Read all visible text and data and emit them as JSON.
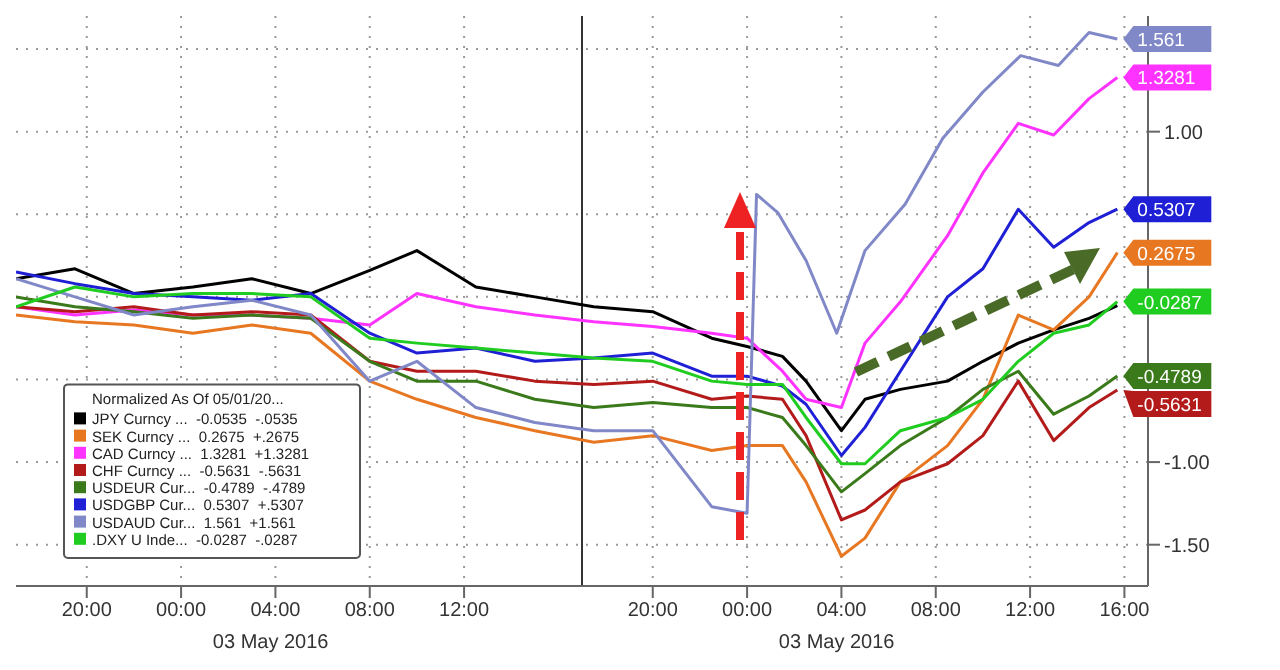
{
  "chart_data": {
    "type": "line",
    "legend_title": "Normalized As Of 05/01/20...",
    "x": [
      "2016-05-02T17:00",
      "2016-05-02T19:30",
      "2016-05-02T22:00",
      "2016-05-03T00:30",
      "2016-05-03T03:00",
      "2016-05-03T05:30",
      "2016-05-03T08:00",
      "2016-05-03T10:00",
      "2016-05-03T12:30",
      "2016-05-03T15:00",
      "2016-05-03T17:30",
      "2016-05-03T20:00",
      "2016-05-03T22:30",
      "2016-05-04T00:00",
      "2016-05-04T01:30",
      "2016-05-04T02:30",
      "2016-05-04T04:00",
      "2016-05-04T05:00",
      "2016-05-04T06:30",
      "2016-05-04T08:30",
      "2016-05-04T10:00",
      "2016-05-04T11:30",
      "2016-05-04T13:00",
      "2016-05-04T14:30",
      "2016-05-04T15:42"
    ],
    "xlim": [
      "2016-05-02T17:00",
      "2016-05-04T17:00"
    ],
    "xticks": [
      {
        "value": "2016-05-02T20:00",
        "label": "20:00"
      },
      {
        "value": "2016-05-03T00:00",
        "label": "00:00"
      },
      {
        "value": "2016-05-03T04:00",
        "label": "04:00"
      },
      {
        "value": "2016-05-03T08:00",
        "label": "08:00"
      },
      {
        "value": "2016-05-03T12:00",
        "label": "12:00"
      },
      {
        "value": "2016-05-03T20:00",
        "label": "20:00"
      },
      {
        "value": "2016-05-04T00:00",
        "label": "00:00"
      },
      {
        "value": "2016-05-04T04:00",
        "label": "04:00"
      },
      {
        "value": "2016-05-04T08:00",
        "label": "08:00"
      },
      {
        "value": "2016-05-04T12:00",
        "label": "12:00"
      },
      {
        "value": "2016-05-04T16:00",
        "label": "16:00"
      }
    ],
    "ylim": [
      -1.75,
      1.7
    ],
    "yticks": [
      {
        "value": 1.5,
        "label": null
      },
      {
        "value": 1,
        "label": "1.00"
      },
      {
        "value": 0.5,
        "label": null
      },
      {
        "value": 0,
        "label": null
      },
      {
        "value": -0.5,
        "label": null
      },
      {
        "value": -1,
        "label": "-1.00"
      },
      {
        "value": -1.5,
        "label": "-1.50"
      }
    ],
    "grid": true,
    "legend": "bottom left",
    "marker": "none",
    "line_style": "solid",
    "ref_lines": [
      {
        "axis": "x",
        "value": "2016-05-03T17:00",
        "color": "#333333",
        "line_style": "solid"
      }
    ],
    "annotations": [
      "03 May 2016",
      "03 May 2016"
    ],
    "series": [
      {
        "name": "JPY Curncy ...  -0.0535  -.0535",
        "color": "#000000",
        "values": [
          0.11,
          0.17,
          0.02,
          0.06,
          0.11,
          0.02,
          0.16,
          0.28,
          0.06,
          0,
          -0.06,
          -0.09,
          -0.25,
          -0.3,
          -0.36,
          -0.51,
          -0.81,
          -0.62,
          -0.56,
          -0.51,
          -0.39,
          -0.28,
          -0.2,
          -0.13,
          -0.0535
        ]
      },
      {
        "name": "SEK Curncy ...  0.2675  +.2675",
        "color": "#e87722",
        "values": [
          -0.11,
          -0.15,
          -0.17,
          -0.22,
          -0.17,
          -0.22,
          -0.51,
          -0.62,
          -0.73,
          -0.81,
          -0.88,
          -0.84,
          -0.93,
          -0.9,
          -0.9,
          -1.12,
          -1.57,
          -1.46,
          -1.12,
          -0.9,
          -0.62,
          -0.11,
          -0.2,
          0,
          0.2675
        ],
        "value_labels": [
          null,
          null,
          null,
          null,
          null,
          null,
          null,
          null,
          null,
          null,
          null,
          null,
          null,
          null,
          null,
          null,
          null,
          null,
          null,
          null,
          null,
          null,
          null,
          null,
          "0.2675"
        ]
      },
      {
        "name": "CAD Curncy ...  1.3281  +1.3281",
        "color": "#ff33ff",
        "values": [
          -0.06,
          -0.11,
          -0.08,
          -0.11,
          -0.11,
          -0.13,
          -0.17,
          0.02,
          -0.06,
          -0.11,
          -0.15,
          -0.18,
          -0.22,
          -0.25,
          -0.45,
          -0.62,
          -0.67,
          -0.28,
          -0.03,
          0.37,
          0.75,
          1.05,
          0.98,
          1.2,
          1.3281
        ],
        "value_labels": [
          null,
          null,
          null,
          null,
          null,
          null,
          null,
          null,
          null,
          null,
          null,
          null,
          null,
          null,
          null,
          null,
          null,
          null,
          null,
          null,
          null,
          null,
          null,
          null,
          "1.3281"
        ]
      },
      {
        "name": "CHF Curncy ...  -0.5631  -.5631",
        "color": "#b31b1b",
        "values": [
          -0.06,
          -0.09,
          -0.06,
          -0.11,
          -0.09,
          -0.11,
          -0.39,
          -0.45,
          -0.45,
          -0.51,
          -0.53,
          -0.51,
          -0.62,
          -0.6,
          -0.62,
          -0.84,
          -1.35,
          -1.29,
          -1.12,
          -1.01,
          -0.84,
          -0.51,
          -0.87,
          -0.67,
          -0.5631
        ],
        "value_labels": [
          null,
          null,
          null,
          null,
          null,
          null,
          null,
          null,
          null,
          null,
          null,
          null,
          null,
          null,
          null,
          null,
          null,
          null,
          null,
          null,
          null,
          null,
          null,
          null,
          "-0.5631"
        ]
      },
      {
        "name": "USDEUR Cur...  -0.4789  -.4789",
        "color": "#3a7a1a",
        "values": [
          0,
          -0.06,
          -0.09,
          -0.13,
          -0.11,
          -0.13,
          -0.39,
          -0.51,
          -0.51,
          -0.62,
          -0.67,
          -0.64,
          -0.67,
          -0.67,
          -0.73,
          -0.9,
          -1.18,
          -1.07,
          -0.9,
          -0.73,
          -0.56,
          -0.45,
          -0.71,
          -0.6,
          -0.4789
        ],
        "value_labels": [
          null,
          null,
          null,
          null,
          null,
          null,
          null,
          null,
          null,
          null,
          null,
          null,
          null,
          null,
          null,
          null,
          null,
          null,
          null,
          null,
          null,
          null,
          null,
          null,
          "-0.4789"
        ]
      },
      {
        "name": "USDGBP Cur...  0.5307  +.5307",
        "color": "#1f1fd6",
        "values": [
          0.15,
          0.08,
          0.02,
          0,
          -0.02,
          0.02,
          -0.22,
          -0.34,
          -0.31,
          -0.39,
          -0.37,
          -0.34,
          -0.48,
          -0.48,
          -0.54,
          -0.65,
          -0.96,
          -0.79,
          -0.45,
          0,
          0.17,
          0.53,
          0.3,
          0.45,
          0.5307
        ],
        "value_labels": [
          null,
          null,
          null,
          null,
          null,
          null,
          null,
          null,
          null,
          null,
          null,
          null,
          null,
          null,
          null,
          null,
          null,
          null,
          null,
          null,
          null,
          null,
          null,
          null,
          "0.5307"
        ]
      },
      {
        "name": "USDAUD Cur...  1.561  +1.561",
        "color": "#8088c8",
        "x": [
          "2016-05-02T17:00",
          "2016-05-02T19:30",
          "2016-05-02T22:00",
          "2016-05-03T00:30",
          "2016-05-03T03:00",
          "2016-05-03T05:30",
          "2016-05-03T08:00",
          "2016-05-03T10:00",
          "2016-05-03T12:30",
          "2016-05-03T15:00",
          "2016-05-03T17:30",
          "2016-05-03T20:00",
          "2016-05-03T22:30",
          "2016-05-04T00:00",
          "2016-05-04T00:24",
          "2016-05-04T01:18",
          "2016-05-04T02:30",
          "2016-05-04T03:48",
          "2016-05-04T05:00",
          "2016-05-04T06:42",
          "2016-05-04T08:18",
          "2016-05-04T10:00",
          "2016-05-04T11:36",
          "2016-05-04T13:12",
          "2016-05-04T14:30",
          "2016-05-04T15:42"
        ],
        "values": [
          0.11,
          0,
          -0.11,
          -0.06,
          -0.02,
          -0.11,
          -0.51,
          -0.39,
          -0.67,
          -0.76,
          -0.81,
          -0.81,
          -1.27,
          -1.31,
          0.62,
          0.51,
          0.22,
          -0.22,
          0.28,
          0.56,
          0.96,
          1.24,
          1.46,
          1.4,
          1.6,
          1.561
        ],
        "value_labels": [
          null,
          null,
          null,
          null,
          null,
          null,
          null,
          null,
          null,
          null,
          null,
          null,
          null,
          null,
          null,
          null,
          null,
          null,
          null,
          null,
          null,
          null,
          null,
          null,
          null,
          "1.561"
        ]
      },
      {
        "name": ".DXY U Inde...  -0.0287  -.0287",
        "color": "#1fcc1f",
        "values": [
          -0.06,
          0.06,
          0,
          0.02,
          0.02,
          0,
          -0.25,
          -0.28,
          -0.31,
          -0.34,
          -0.37,
          -0.39,
          -0.51,
          -0.53,
          -0.53,
          -0.73,
          -1.01,
          -1.01,
          -0.81,
          -0.73,
          -0.62,
          -0.39,
          -0.22,
          -0.17,
          -0.0287
        ],
        "value_labels": [
          null,
          null,
          null,
          null,
          null,
          null,
          null,
          null,
          null,
          null,
          null,
          null,
          null,
          null,
          null,
          null,
          null,
          null,
          null,
          null,
          null,
          null,
          null,
          null,
          "-0.0287"
        ]
      }
    ]
  }
}
